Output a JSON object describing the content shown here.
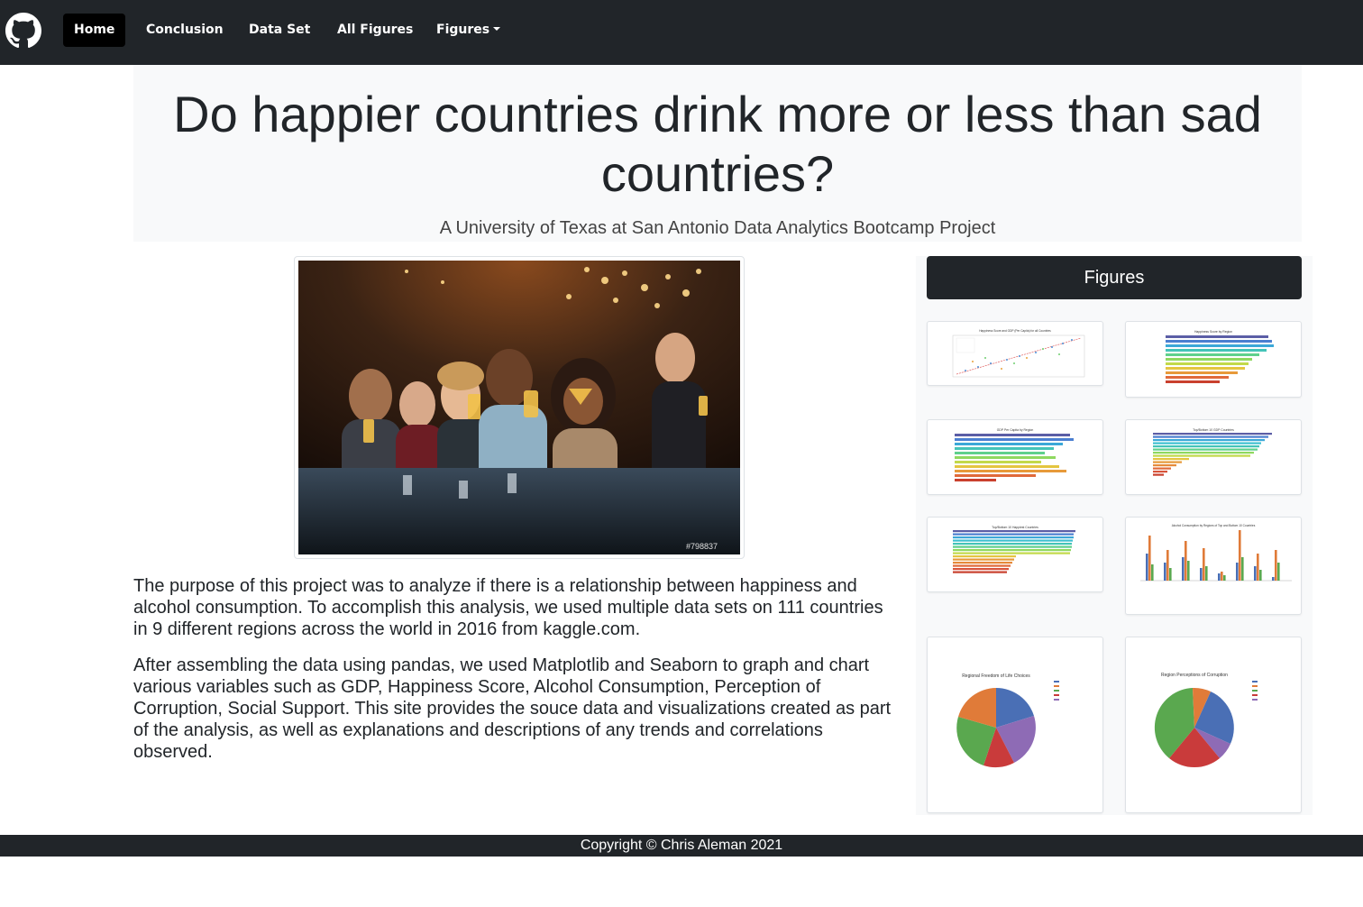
{
  "nav": {
    "items": [
      "Home",
      "Conclusion",
      "Data Set",
      "All Figures",
      "Figures"
    ],
    "active": "Home"
  },
  "header": {
    "title": "Do happier countries drink more or less than sad countries?",
    "subtitle": "A University of Texas at San Antonio Data Analytics Bootcamp Project"
  },
  "hero_image": {
    "watermark": "#798837"
  },
  "body": {
    "paragraph_1": "The purpose of this project was to analyze if there is a relationship between happiness and alcohol consumption. To accomplish this analysis, we used multiple data sets on 111 countries in 9 different regions across the world in 2016 from kaggle.com.",
    "paragraph_2": "After assembling the data using pandas, we used Matplotlib and Seaborn to graph and chart various variables such as GDP, Happiness Score, Alcohol Consumption, Perception of Corruption, Social Support. This site provides the souce data and visualizations created as part of the analysis, as well as explanations and descriptions of any trends and correlations observed."
  },
  "sidebar": {
    "heading": "Figures",
    "thumbnails": [
      {
        "title": "Happiness Score and GDP (Per Capita) for all Countries",
        "kind": "scatter"
      },
      {
        "title": "Happiness Score by Region",
        "kind": "hbar"
      },
      {
        "title": "GDP Per Capita by Region",
        "kind": "hbar"
      },
      {
        "title": "Top/Bottom 10 GDP Countries",
        "kind": "hbar"
      },
      {
        "title": "Top/Bottom 10 Happiest Countries",
        "kind": "hbar"
      },
      {
        "title": "Alcohol Consumption by Regions of Top and Bottom 10 Countries",
        "kind": "grouped-bar"
      },
      {
        "title": "Regional Freedom of Life Choices",
        "kind": "pie"
      },
      {
        "title": "Region Perceptions of Corruption",
        "kind": "pie"
      }
    ]
  },
  "footer": {
    "copyright": "Copyright © Chris Aleman 2021"
  },
  "colors": {
    "navbar": "#212529",
    "jumbotron": "#f8f9fa",
    "footer": "#212529"
  }
}
